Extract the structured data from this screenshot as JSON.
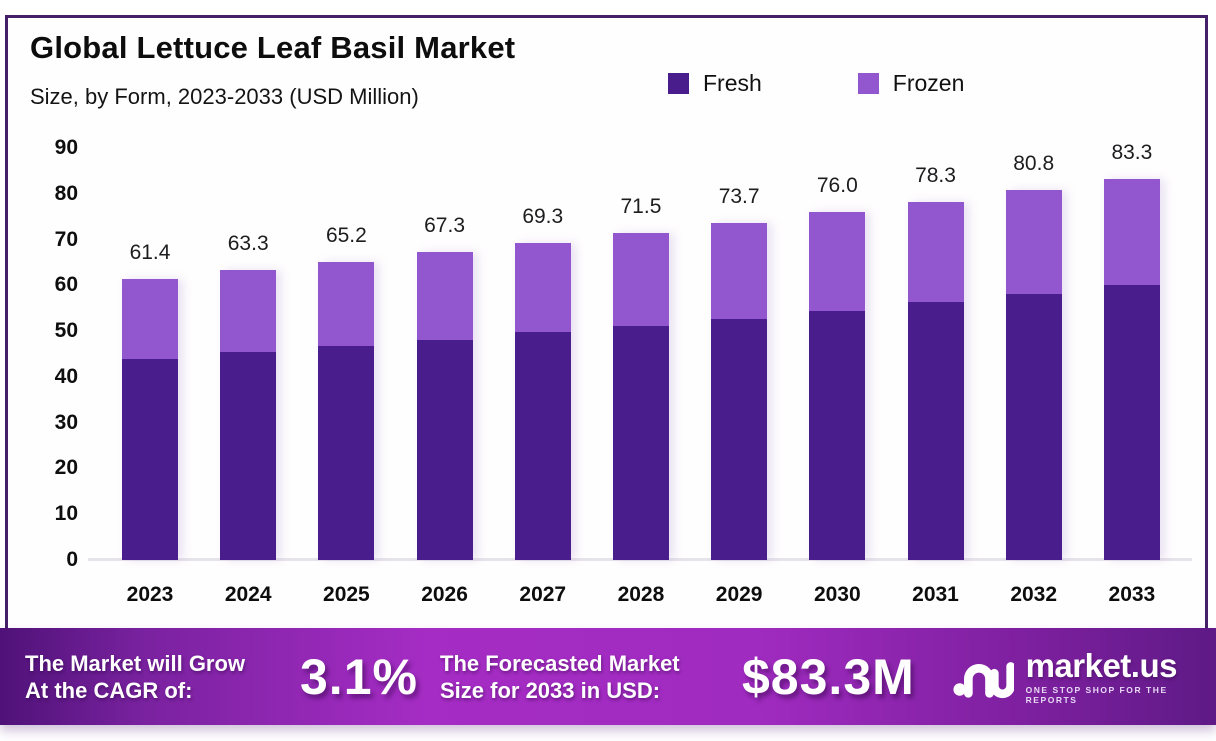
{
  "header": {
    "title": "Global Lettuce Leaf Basil Market",
    "subtitle": "Size, by Form, 2023-2033 (USD Million)"
  },
  "chart_data": {
    "type": "bar",
    "stacked": true,
    "title": "Global Lettuce Leaf Basil Market",
    "subtitle": "Size, by Form, 2023-2033 (USD Million)",
    "categories": [
      "2023",
      "2024",
      "2025",
      "2026",
      "2027",
      "2028",
      "2029",
      "2030",
      "2031",
      "2032",
      "2033"
    ],
    "series": [
      {
        "name": "Fresh",
        "color": "#4a1d8c",
        "values": [
          44.0,
          45.4,
          46.7,
          48.1,
          49.8,
          51.2,
          52.6,
          54.5,
          56.3,
          58.0,
          60.0
        ]
      },
      {
        "name": "Frozen",
        "color": "#9257ce",
        "values": [
          17.4,
          17.9,
          18.5,
          19.2,
          19.5,
          20.3,
          21.1,
          21.5,
          22.0,
          22.8,
          23.3
        ]
      }
    ],
    "totals": [
      "61.4",
      "63.3",
      "65.2",
      "67.3",
      "69.3",
      "71.5",
      "73.7",
      "76.0",
      "78.3",
      "80.8",
      "83.3"
    ],
    "ylim": [
      0,
      90
    ],
    "ytick_step": 10,
    "grid": false,
    "legend_position": "top-right"
  },
  "footer": {
    "cagr_label_line1": "The Market will Grow",
    "cagr_label_line2": "At the CAGR of:",
    "cagr_value": "3.1%",
    "forecast_label_line1": "The Forecasted Market",
    "forecast_label_line2": "Size for 2033 in USD:",
    "forecast_value": "$83.3M",
    "brand_name": "market.us",
    "brand_tagline": "ONE STOP SHOP FOR THE REPORTS"
  },
  "colors": {
    "fresh": "#4a1d8c",
    "frozen": "#9257ce",
    "frame_border": "#452069",
    "band_gradient_mid": "#a52cc4",
    "band_gradient_edge": "#5e1a86",
    "axis_line": "#e7e3ea"
  }
}
